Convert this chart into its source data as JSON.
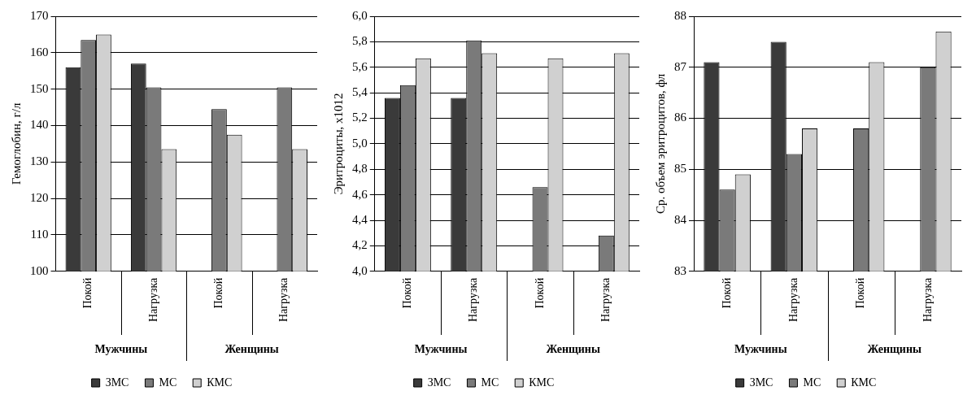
{
  "chart_data": [
    {
      "type": "bar",
      "ylabel": "Гемоглобин, г/л",
      "categories": [
        "Покой",
        "Нагрузка",
        "Покой",
        "Нагрузка"
      ],
      "annotations": [
        "Мужчины",
        "Женщины"
      ],
      "series": [
        {
          "name": "ЗМС",
          "color": "#3a3a3a",
          "values": [
            156,
            157,
            null,
            null
          ]
        },
        {
          "name": "МС",
          "color": "#7a7a7a",
          "values": [
            163.5,
            150.5,
            144.5,
            150.5
          ]
        },
        {
          "name": "КМС",
          "color": "#d0d0d0",
          "values": [
            165,
            133.5,
            137.5,
            133.5
          ]
        }
      ],
      "ylim": [
        100,
        170
      ],
      "yticks": [
        100,
        110,
        120,
        130,
        140,
        150,
        160,
        170
      ],
      "grid": "y",
      "legend": "bottom"
    },
    {
      "type": "bar",
      "ylabel": "Эритроциты, х1012",
      "categories": [
        "Покой",
        "Нагрузка",
        "Покой",
        "Нагрузка"
      ],
      "annotations": [
        "Мужчины",
        "Женщины"
      ],
      "series": [
        {
          "name": "ЗМС",
          "color": "#3a3a3a",
          "values": [
            5.36,
            5.36,
            null,
            null
          ]
        },
        {
          "name": "МС",
          "color": "#7a7a7a",
          "values": [
            5.46,
            5.81,
            4.66,
            4.28
          ]
        },
        {
          "name": "КМС",
          "color": "#d0d0d0",
          "values": [
            5.67,
            5.71,
            5.67,
            5.71
          ]
        }
      ],
      "ylim": [
        4,
        6
      ],
      "yticks": [
        {
          "value": 4,
          "label": "4,0"
        },
        {
          "value": 4.2,
          "label": "4,2"
        },
        {
          "value": 4.4,
          "label": "4,4"
        },
        {
          "value": 4.6,
          "label": "4,6"
        },
        {
          "value": 4.8,
          "label": "4,8"
        },
        {
          "value": 5,
          "label": "5,0"
        },
        {
          "value": 5.2,
          "label": "5,2"
        },
        {
          "value": 5.4,
          "label": "5,4"
        },
        {
          "value": 5.6,
          "label": "5,6"
        },
        {
          "value": 5.8,
          "label": "5,8"
        },
        {
          "value": 6,
          "label": "6,0"
        }
      ],
      "grid": "y",
      "legend": "bottom"
    },
    {
      "type": "bar",
      "ylabel": "Ср. объем эритроцитов, фл",
      "categories": [
        "Покой",
        "Нагрузка",
        "Покой",
        "Нагрузка"
      ],
      "annotations": [
        "Мужчины",
        "Женщины"
      ],
      "series": [
        {
          "name": "ЗМС",
          "color": "#3a3a3a",
          "values": [
            87.1,
            87.5,
            null,
            null
          ]
        },
        {
          "name": "МС",
          "color": "#7a7a7a",
          "values": [
            84.6,
            85.3,
            85.8,
            87.0
          ]
        },
        {
          "name": "КМС",
          "color": "#d0d0d0",
          "values": [
            84.9,
            85.8,
            87.1,
            87.7
          ]
        }
      ],
      "ylim": [
        83,
        88
      ],
      "yticks": [
        83,
        84,
        85,
        86,
        87,
        88
      ],
      "grid": "y",
      "legend": "bottom"
    }
  ]
}
